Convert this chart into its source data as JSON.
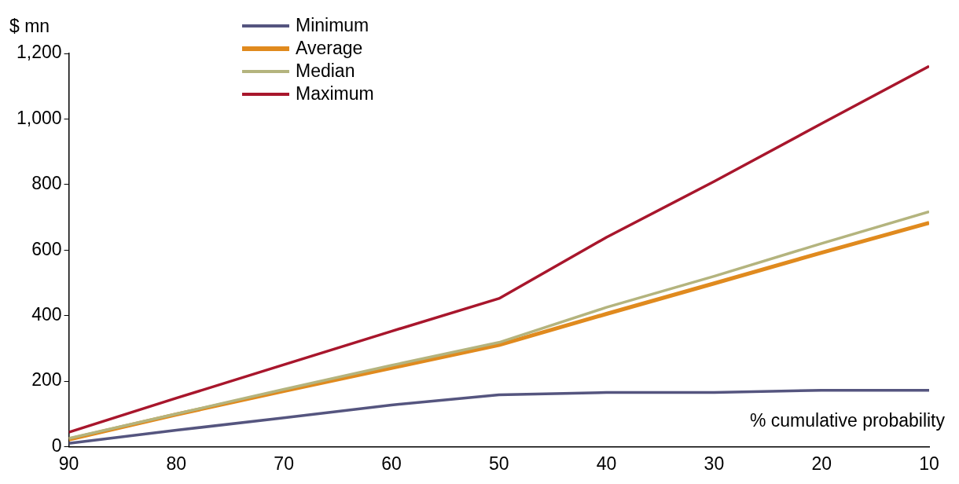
{
  "chart_data": {
    "type": "line",
    "xlabel": "% cumulative probability",
    "ylabel": "$ mn",
    "x": [
      90,
      80,
      70,
      60,
      50,
      40,
      30,
      20,
      10
    ],
    "xlim": [
      90,
      10
    ],
    "xticks": [
      90,
      80,
      70,
      60,
      50,
      40,
      30,
      20,
      10
    ],
    "ylim": [
      0,
      1200
    ],
    "yticks": [
      0,
      200,
      400,
      600,
      800,
      {
        "value": 1000,
        "label": "1,000"
      },
      {
        "value": 1200,
        "label": "1,200"
      }
    ],
    "grid": false,
    "legend": "top left",
    "marker": "none",
    "line_style": "solid",
    "series": [
      {
        "name": "Minimum",
        "color": "#55557f",
        "values": [
          10,
          50,
          88,
          127,
          158,
          165,
          165,
          172,
          172
        ]
      },
      {
        "name": "Average",
        "color": "#e08a1e",
        "values": [
          22,
          98,
          170,
          240,
          310,
          405,
          498,
          592,
          683
        ]
      },
      {
        "name": "Median",
        "color": "#b4b47e",
        "values": [
          25,
          100,
          175,
          248,
          318,
          425,
          520,
          620,
          717
        ]
      },
      {
        "name": "Maximum",
        "color": "#a8162c",
        "values": [
          44,
          148,
          250,
          352,
          452,
          639,
          809,
          986,
          1161
        ]
      }
    ]
  }
}
